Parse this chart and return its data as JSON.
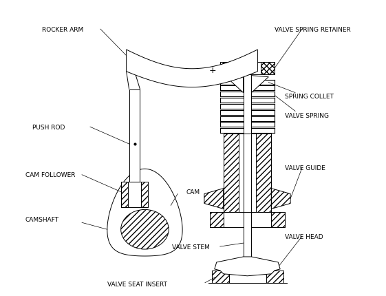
{
  "bg_color": "#ffffff",
  "line_color": "#000000",
  "labels": {
    "rocker_arm": "ROCKER ARM",
    "push_rod": "PUSH ROD",
    "cam_follower": "CAM FOLLOWER",
    "camshaft": "CAMSHAFT",
    "cam": "CAM",
    "valve_stem": "VALVE STEM",
    "valve_seat_insert": "VALVE SEAT INSERT",
    "valve_spring_retainer": "VALVE SPRING RETAINER",
    "spring_collet": "SPRING COLLET",
    "valve_spring": "VALVE SPRING",
    "valve_guide": "VALVE GUIDE",
    "valve_head": "VALVE HEAD"
  },
  "figsize": [
    5.61,
    4.31
  ],
  "dpi": 100
}
